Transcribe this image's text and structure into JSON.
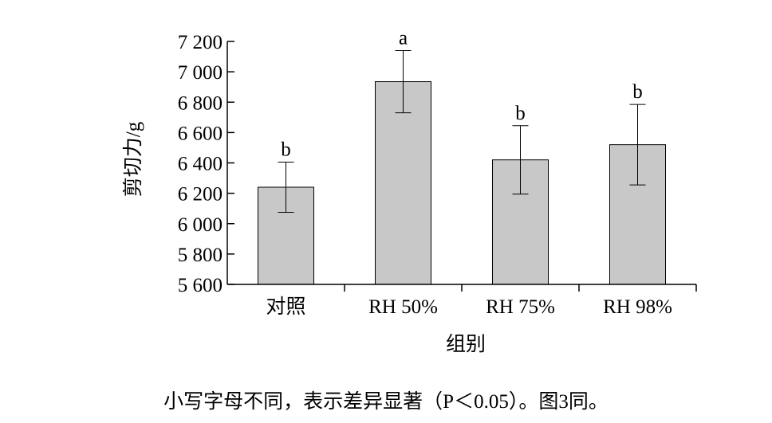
{
  "chart_data": {
    "type": "bar",
    "categories": [
      "对照",
      "RH 50%",
      "RH 75%",
      "RH 98%"
    ],
    "values": [
      6240,
      6935,
      6420,
      6520
    ],
    "errors": [
      165,
      205,
      225,
      265
    ],
    "significance": [
      "b",
      "a",
      "b",
      "b"
    ],
    "ylabel": "剪切力/g",
    "xlabel": "组别",
    "ylim": [
      5600,
      7200
    ],
    "yticks": [
      5600,
      5800,
      6000,
      6200,
      6400,
      6600,
      6800,
      7000,
      7200
    ],
    "ytick_labels": [
      "5 600",
      "5 800",
      "6 000",
      "6 200",
      "6 400",
      "6 600",
      "6 800",
      "7 000",
      "7 200"
    ],
    "bar_color": "#c8c8c8",
    "grid": false
  },
  "caption": "小写字母不同，表示差异显著（P＜0.05）。图3同。"
}
